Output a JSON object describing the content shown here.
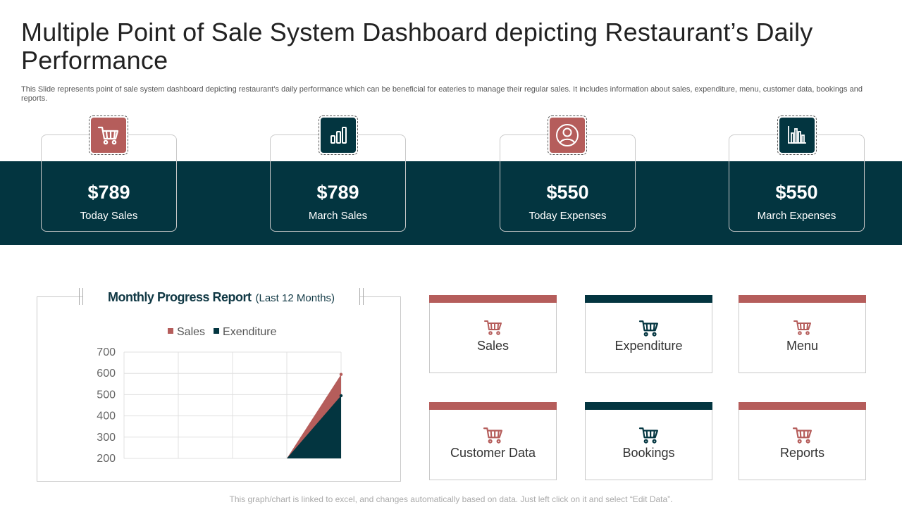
{
  "page": {
    "title": "Multiple Point of Sale System Dashboard depicting Restaurant’s Daily Performance",
    "subtitle": "This Slide represents point of sale system dashboard depicting restaurant’s daily performance which can be beneficial for eateries to manage their regular sales. It includes information about sales, expenditure, menu, customer data, bookings and reports.",
    "footer": "This graph/chart is linked to excel, and changes automatically based on data. Just left click on it and select “Edit Data”."
  },
  "colors": {
    "accent_red": "#b55d5b",
    "accent_teal": "#033540"
  },
  "kpis": [
    {
      "value": "$789",
      "label": "Today Sales",
      "icon": "shopping-cart-icon",
      "color": "red"
    },
    {
      "value": "$789",
      "label": "March Sales",
      "icon": "bar-chart-icon",
      "color": "teal"
    },
    {
      "value": "$550",
      "label": "Today Expenses",
      "icon": "user-icon",
      "color": "red"
    },
    {
      "value": "$550",
      "label": "March Expenses",
      "icon": "column-chart-icon",
      "color": "teal"
    }
  ],
  "chart_heading": {
    "title": "Monthly Progress Report",
    "subtitle": "(Last 12 Months)"
  },
  "chart_data": {
    "type": "area",
    "title": "Monthly Progress Report",
    "x": [
      1,
      2,
      3,
      4,
      5
    ],
    "yticks": [
      200,
      300,
      400,
      500,
      600,
      700
    ],
    "ylim": [
      200,
      700
    ],
    "grid": true,
    "legend": "top",
    "series": [
      {
        "name": "Sales",
        "color": "#b55d5b",
        "values": [
          200,
          200,
          200,
          200,
          595
        ]
      },
      {
        "name": "Exenditure",
        "color": "#033540",
        "values": [
          200,
          200,
          200,
          200,
          495
        ]
      }
    ]
  },
  "tiles": [
    {
      "label": "Sales",
      "bar": "red"
    },
    {
      "label": "Expenditure",
      "bar": "teal"
    },
    {
      "label": "Menu",
      "bar": "red"
    },
    {
      "label": "Customer Data",
      "bar": "red"
    },
    {
      "label": "Bookings",
      "bar": "teal"
    },
    {
      "label": "Reports",
      "bar": "red"
    }
  ]
}
